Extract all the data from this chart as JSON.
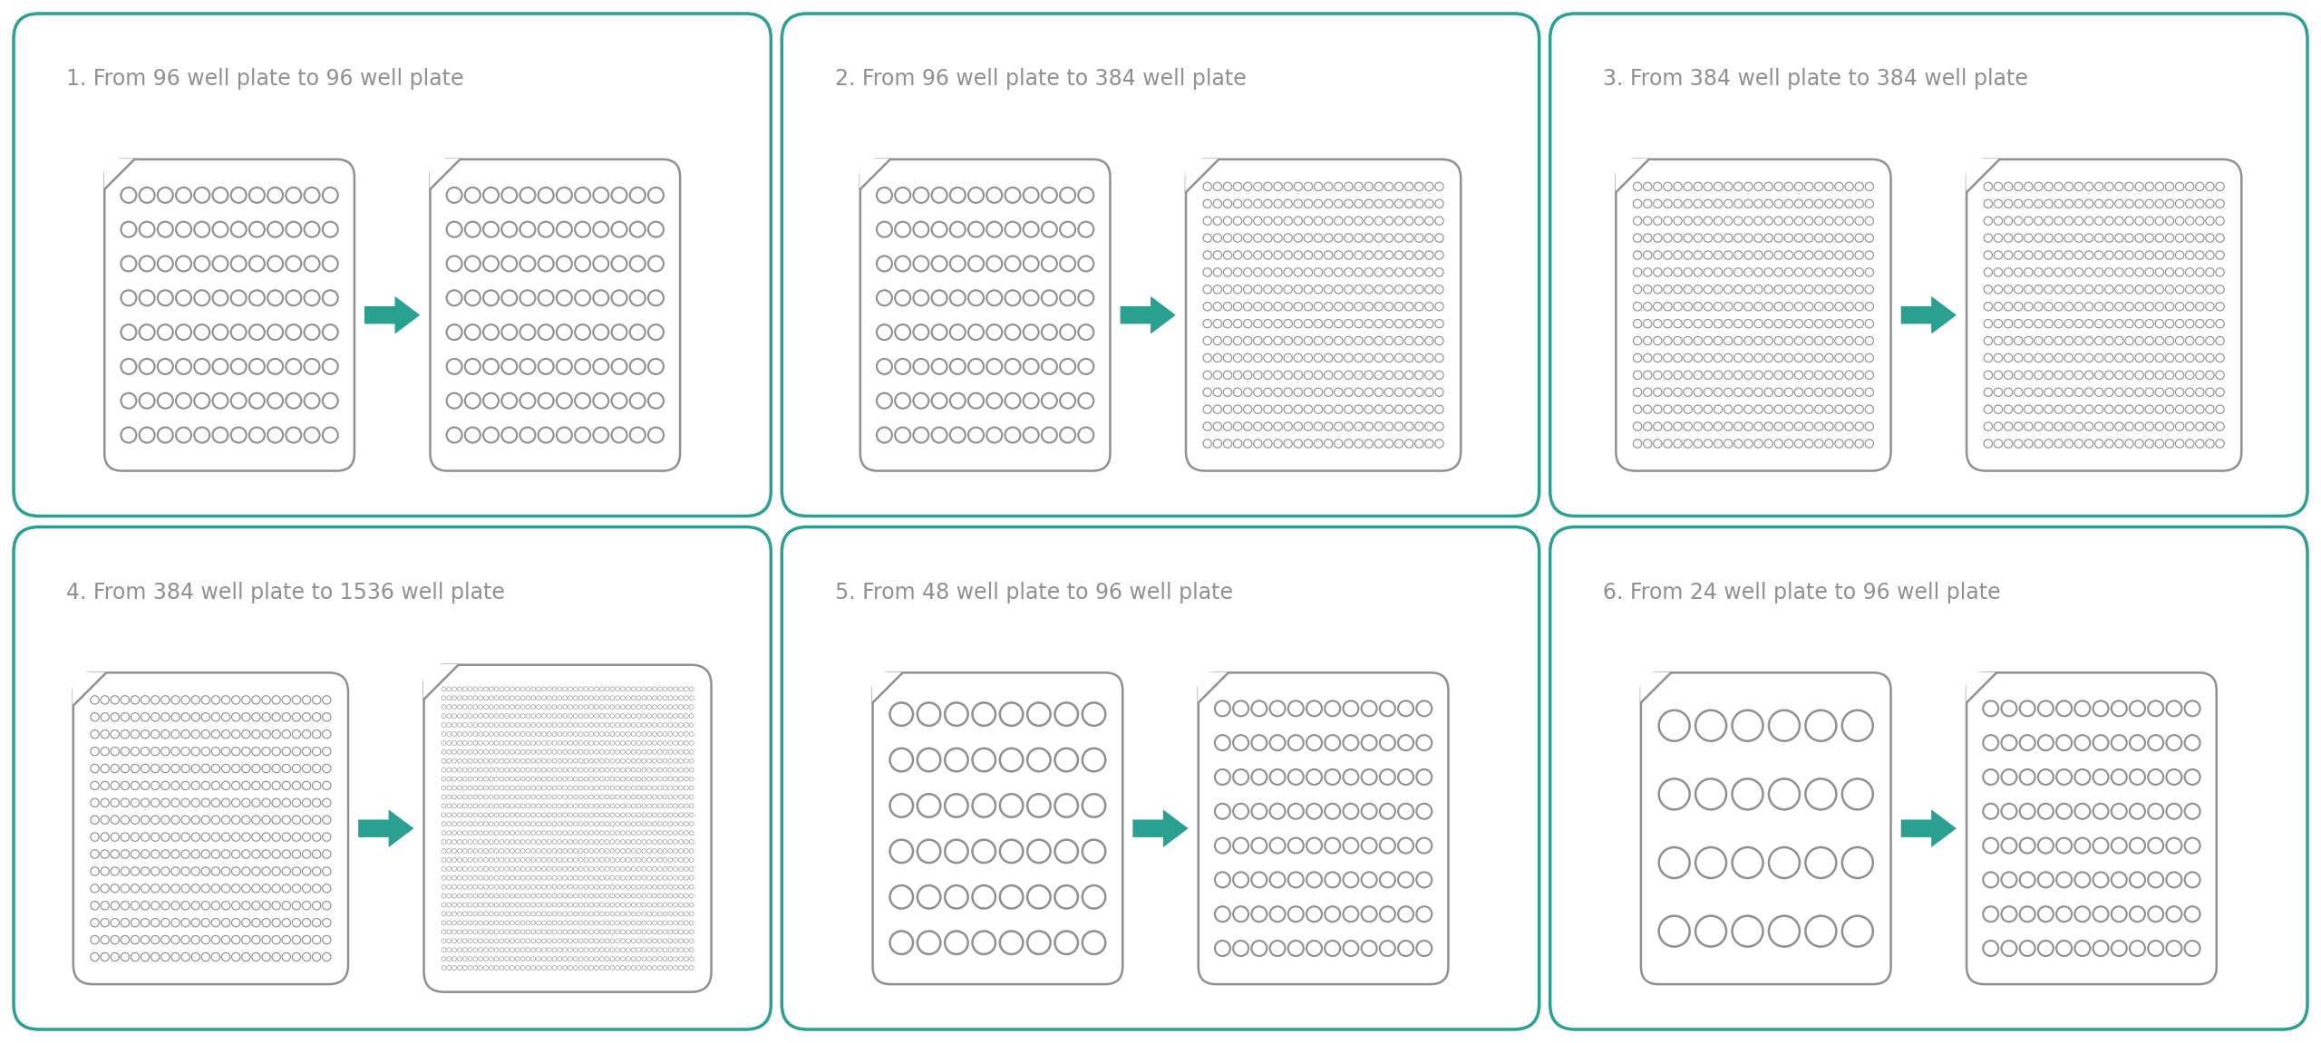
{
  "bg_color": "#ffffff",
  "panel_border_color": "#2aa090",
  "plate_border_color": "#909090",
  "arrow_color": "#2aa090",
  "text_color": "#909090",
  "title_fontsize": 17,
  "panels": [
    {
      "title": "1. From 96 well plate to 96 well plate",
      "plate1": {
        "rows": 8,
        "cols": 12,
        "total": 96
      },
      "plate2": {
        "rows": 8,
        "cols": 12,
        "total": 96
      }
    },
    {
      "title": "2. From 96 well plate to 384 well plate",
      "plate1": {
        "rows": 8,
        "cols": 12,
        "total": 96
      },
      "plate2": {
        "rows": 16,
        "cols": 24,
        "total": 384
      }
    },
    {
      "title": "3. From 384 well plate to 384 well plate",
      "plate1": {
        "rows": 16,
        "cols": 24,
        "total": 384
      },
      "plate2": {
        "rows": 16,
        "cols": 24,
        "total": 384
      }
    },
    {
      "title": "4. From 384 well plate to 1536 well plate",
      "plate1": {
        "rows": 16,
        "cols": 24,
        "total": 384
      },
      "plate2": {
        "rows": 32,
        "cols": 48,
        "total": 1536
      }
    },
    {
      "title": "5. From 48 well plate to 96 well plate",
      "plate1": {
        "rows": 6,
        "cols": 8,
        "total": 48
      },
      "plate2": {
        "rows": 8,
        "cols": 12,
        "total": 96
      }
    },
    {
      "title": "6. From 24 well plate to 96 well plate",
      "plate1": {
        "rows": 4,
        "cols": 6,
        "total": 24
      },
      "plate2": {
        "rows": 8,
        "cols": 12,
        "total": 96
      }
    }
  ]
}
